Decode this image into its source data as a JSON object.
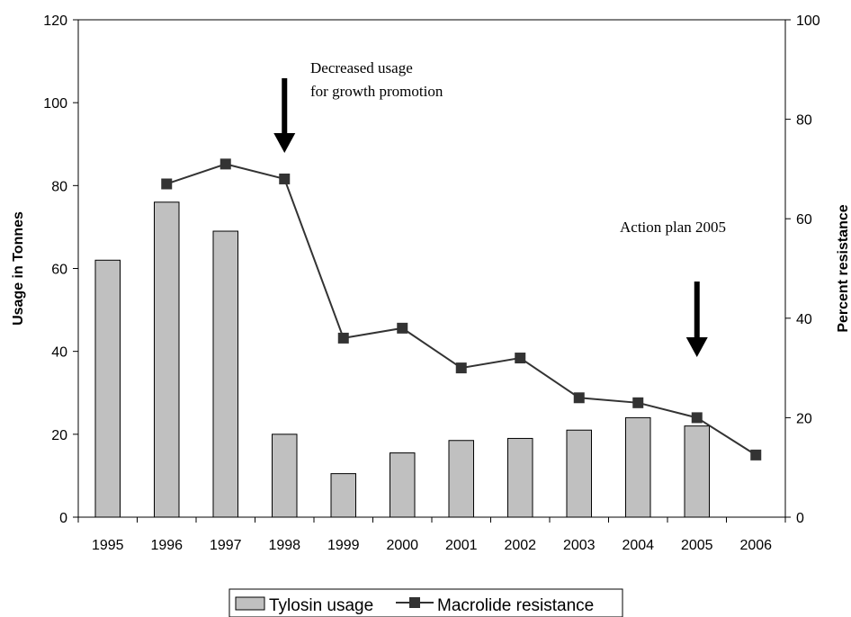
{
  "chart_data": {
    "type": "bar",
    "categories": [
      "1995",
      "1996",
      "1997",
      "1998",
      "1999",
      "2000",
      "2001",
      "2002",
      "2003",
      "2004",
      "2005",
      "2006"
    ],
    "series": [
      {
        "name": "Tylosin usage",
        "type": "bar",
        "axis": "left",
        "color": "#c0c0c0",
        "values": [
          62,
          76,
          69,
          20,
          10.5,
          15.5,
          18.5,
          19,
          21,
          24,
          22,
          null
        ]
      },
      {
        "name": "Macrolide resistance",
        "type": "line",
        "axis": "right",
        "color": "#333333",
        "values": [
          null,
          67,
          71,
          68,
          36,
          38,
          30,
          32,
          24,
          23,
          20,
          12.5
        ]
      }
    ],
    "ylabel": "Usage in Tonnes",
    "y2label": "Percent resistance",
    "ylim": [
      0,
      120
    ],
    "y2lim": [
      0,
      100
    ],
    "yticks": [
      "0",
      "20",
      "40",
      "60",
      "80",
      "100",
      "120"
    ],
    "y2ticks": [
      "0",
      "20",
      "40",
      "60",
      "80",
      "100"
    ],
    "grid": false,
    "legend_position": "bottom",
    "annotations": [
      {
        "lines": [
          "Decreased usage",
          "for growth promotion"
        ],
        "category": "1998",
        "arrow": true
      },
      {
        "lines": [
          "Action plan 2005"
        ],
        "category": "2005",
        "arrow": true
      }
    ]
  }
}
